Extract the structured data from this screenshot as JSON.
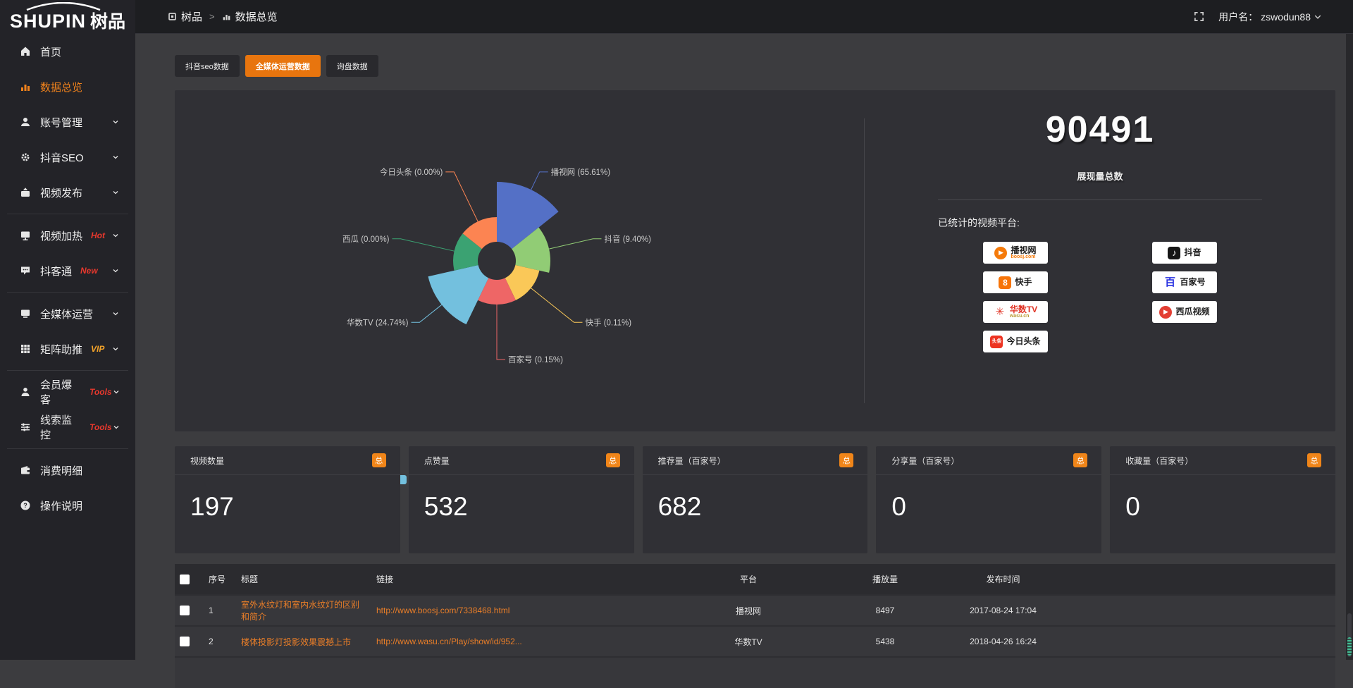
{
  "app": {
    "accent": "#ef8120",
    "panel_bg": "#303035"
  },
  "header": {
    "breadcrumb": [
      {
        "key": "shupin",
        "label": "树品",
        "icon": "app-icon"
      },
      {
        "key": "data-overview",
        "label": "数据总览",
        "icon": "chart-icon"
      }
    ],
    "separator": ">",
    "user_label": "用户名：",
    "username": "zswodun88"
  },
  "sidebar": {
    "logo_text": "SHUPIN",
    "logo_suffix": "树品",
    "items": [
      {
        "key": "home",
        "label": "首页",
        "icon": "home-icon"
      },
      {
        "key": "data-overview",
        "label": "数据总览",
        "icon": "chart-icon",
        "active": true
      },
      {
        "key": "account-manage",
        "label": "账号管理",
        "icon": "user-icon",
        "chevron": true
      },
      {
        "key": "douyin-seo",
        "label": "抖音SEO",
        "icon": "gear-icon",
        "chevron": true
      },
      {
        "key": "video-publish",
        "label": "视频发布",
        "icon": "publish-icon",
        "chevron": true
      },
      {
        "divider": true
      },
      {
        "key": "video-heat",
        "label": "视频加热",
        "icon": "screen-icon",
        "tag": "Hot",
        "tag_color": "#e8382d",
        "chevron": true
      },
      {
        "key": "doukatong",
        "label": "抖客通",
        "icon": "chat-icon",
        "tag": "New",
        "tag_color": "#e8382d",
        "chevron": true
      },
      {
        "divider": true
      },
      {
        "key": "media-operation",
        "label": "全媒体运营",
        "icon": "monitor-icon",
        "chevron": true
      },
      {
        "key": "matrix-boost",
        "label": "矩阵助推",
        "icon": "grid-icon",
        "tag": "VIP",
        "tag_color": "#f3a32a",
        "chevron": true
      },
      {
        "divider": true
      },
      {
        "key": "member-baoke",
        "label": "会员爆客",
        "icon": "member-icon",
        "tag": "Tools",
        "tag_color": "#e8382d",
        "chevron": true
      },
      {
        "key": "clue-monitor",
        "label": "线索监控",
        "icon": "sliders-icon",
        "tag": "Tools",
        "tag_color": "#e8382d",
        "chevron": true
      },
      {
        "divider": true
      },
      {
        "key": "consume-detail",
        "label": "消费明细",
        "icon": "wallet-icon"
      },
      {
        "key": "operation-guide",
        "label": "操作说明",
        "icon": "help-icon"
      }
    ]
  },
  "tabs": [
    {
      "key": "douyin-seo-data",
      "label": "抖音seo数据",
      "active": false
    },
    {
      "key": "media-operation-data",
      "label": "全媒体运营数据",
      "active": true
    },
    {
      "key": "inquiry-data",
      "label": "询盘数据",
      "active": false
    }
  ],
  "chart_data": {
    "type": "pie",
    "subtype": "nightingale-rose",
    "legend_position": "bottom",
    "label_format": "{name} ({pct}%)",
    "inner_radius": 27,
    "equal_angles": true,
    "items": [
      {
        "name": "播视网",
        "pct": "65.61",
        "value": 65.61,
        "color": "#5470c6",
        "radius": 112
      },
      {
        "name": "抖音",
        "pct": "9.40",
        "value": 9.4,
        "color": "#91cc75",
        "radius": 76
      },
      {
        "name": "快手",
        "pct": "0.11",
        "value": 0.11,
        "color": "#fac858",
        "radius": 62
      },
      {
        "name": "百家号",
        "pct": "0.15",
        "value": 0.15,
        "color": "#ee6666",
        "radius": 62
      },
      {
        "name": "华数TV",
        "pct": "24.74",
        "value": 24.74,
        "color": "#73c0de",
        "radius": 100
      },
      {
        "name": "西瓜",
        "pct": "0.00",
        "value": 0,
        "color": "#3ba272",
        "radius": 62
      },
      {
        "name": "今日头条",
        "pct": "0.00",
        "value": 0,
        "color": "#fc8452",
        "radius": 62
      }
    ]
  },
  "summary": {
    "total_value": "90491",
    "total_label": "展现量总数",
    "platforms_label": "已统计的视频平台:",
    "platforms": [
      {
        "key": "boosj",
        "name": "播视网",
        "sub": "boosj.com",
        "sub_color": "#f57a0a",
        "icon": {
          "shape": "circle",
          "bg": "#f57a0a",
          "glyph": "▶",
          "color": "#ffffff",
          "glyph_size": 9
        }
      },
      {
        "key": "douyin",
        "name": "抖音",
        "icon": {
          "shape": "square",
          "bg": "#161616",
          "glyph": "♪",
          "color": "#ffffff",
          "glyph_size": 13
        }
      },
      {
        "key": "kuaishou",
        "name": "快手",
        "icon": {
          "shape": "square",
          "bg": "#f77408",
          "glyph": "8",
          "color": "#ffffff",
          "glyph_size": 12
        }
      },
      {
        "key": "baijiahao",
        "name": "百家号",
        "icon": {
          "shape": "none",
          "glyph": "百",
          "color": "#2932e1",
          "glyph_size": 15
        }
      },
      {
        "key": "wasu",
        "name": "华数TV",
        "name_color": "#e03426",
        "sub": "wasu.cn",
        "sub_color": "#b99a37",
        "icon": {
          "shape": "none",
          "glyph": "✳",
          "color": "#e03426",
          "glyph_size": 15
        }
      },
      {
        "key": "xigua",
        "name": "西瓜视频",
        "icon": {
          "shape": "circle",
          "bg": "#e33e33",
          "glyph": "▶",
          "color": "#ffffff",
          "glyph_size": 9
        }
      },
      {
        "key": "toutiao",
        "name": "今日头条",
        "icon": {
          "shape": "square",
          "bg": "#ed3321",
          "glyph": "头条",
          "color": "#ffffff",
          "glyph_size": 7
        }
      }
    ]
  },
  "stat_cards": [
    {
      "key": "video-count",
      "label": "视频数量",
      "badge": "总",
      "value": "197"
    },
    {
      "key": "like-count",
      "label": "点赞量",
      "badge": "总",
      "value": "532"
    },
    {
      "key": "recommend-count",
      "label": "推荐量（百家号）",
      "badge": "总",
      "value": "682"
    },
    {
      "key": "share-count",
      "label": "分享量（百家号）",
      "badge": "总",
      "value": "0"
    },
    {
      "key": "favorite-count",
      "label": "收藏量（百家号）",
      "badge": "总",
      "value": "0"
    }
  ],
  "table": {
    "headers": [
      "序号",
      "标题",
      "链接",
      "平台",
      "播放量",
      "发布时间"
    ],
    "rows": [
      {
        "index": "1",
        "title": "室外水纹灯和室内水纹灯的区别和简介",
        "link": "http://www.boosj.com/7338468.html",
        "platform": "播视网",
        "plays": "8497",
        "time": "2017-08-24 17:04"
      },
      {
        "index": "2",
        "title": "楼体投影灯投影效果震撼上市",
        "link": "http://www.wasu.cn/Play/show/id/952...",
        "platform": "华数TV",
        "plays": "5438",
        "time": "2018-04-26 16:24"
      }
    ]
  }
}
